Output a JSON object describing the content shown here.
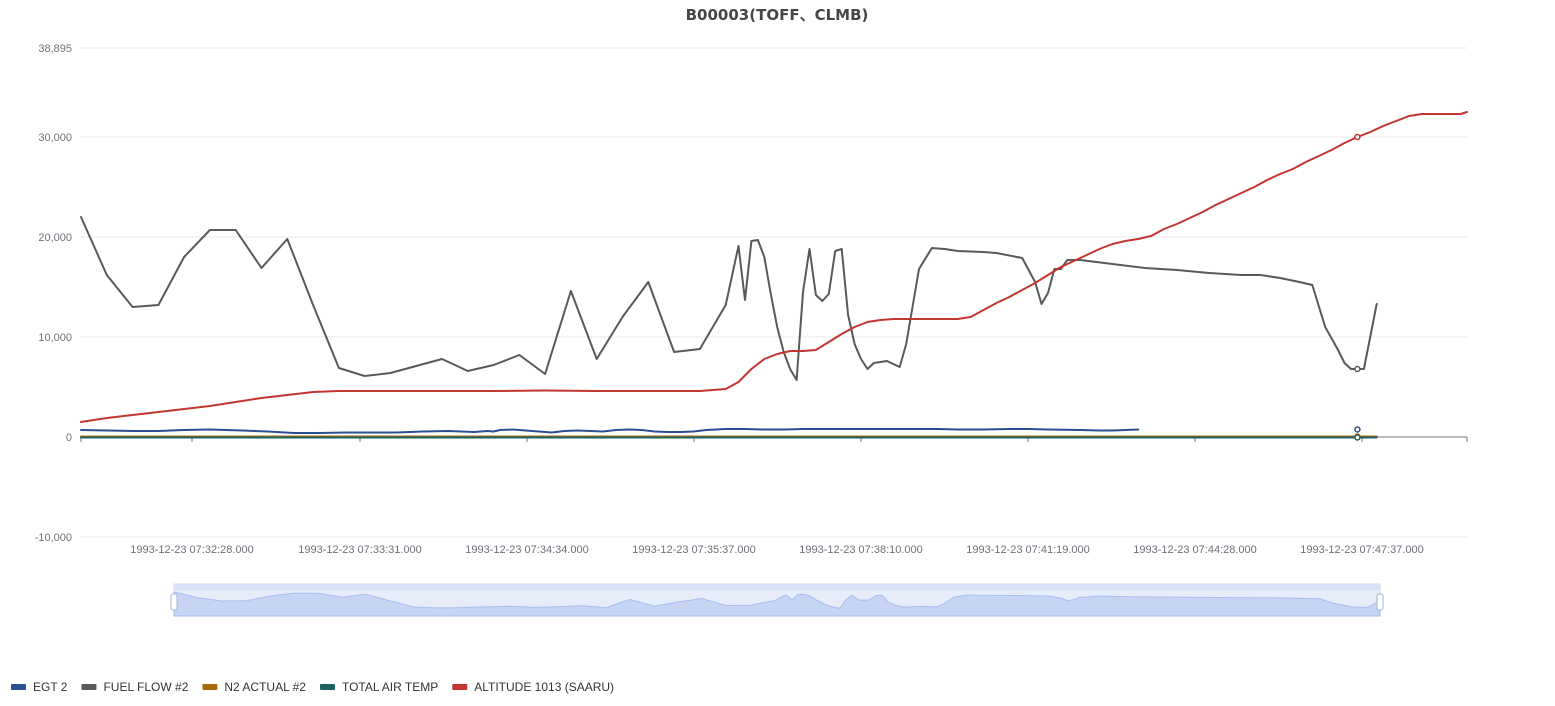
{
  "chart_data": {
    "type": "line",
    "title": "B00003(TOFF、CLMB)",
    "xlabel": "",
    "ylabel": "",
    "ylim": [
      -10000,
      38895
    ],
    "y_ticks": [
      {
        "value": 38895,
        "label": "38,895"
      },
      {
        "value": 30000,
        "label": "30,000"
      },
      {
        "value": 20000,
        "label": "20,000"
      },
      {
        "value": 10000,
        "label": "10,000"
      },
      {
        "value": 0,
        "label": "0"
      },
      {
        "value": -10000,
        "label": "-10,000"
      }
    ],
    "x_ticks": [
      "1993-12-23 07:32:28.000",
      "1993-12-23 07:33:31.000",
      "1993-12-23 07:34:34.000",
      "1993-12-23 07:35:37.000",
      "1993-12-23 07:38:10.000",
      "1993-12-23 07:41:19.000",
      "1993-12-23 07:44:28.000",
      "1993-12-23 07:47:37.000"
    ],
    "x_count": 105,
    "x_tick_positions": [
      8.5,
      21.0,
      33.5,
      46.0,
      58.5,
      71.0,
      83.5,
      96.0
    ],
    "grid": true,
    "legend_position": "bottom-left",
    "data_zoom": {
      "visible": true,
      "start_fraction": 0.067,
      "end_fraction": 0.937
    },
    "series": [
      {
        "name": "EGT 2",
        "color": "#2a4f92",
        "points": [
          [
            0,
            700
          ],
          [
            4,
            650
          ],
          [
            8,
            600
          ],
          [
            12,
            600
          ],
          [
            16,
            700
          ],
          [
            20,
            750
          ],
          [
            25,
            650
          ],
          [
            29,
            550
          ],
          [
            33,
            400
          ],
          [
            37,
            400
          ],
          [
            41,
            450
          ],
          [
            45,
            450
          ],
          [
            49,
            450
          ],
          [
            53,
            550
          ],
          [
            57,
            600
          ],
          [
            61,
            500
          ],
          [
            63,
            600
          ],
          [
            64,
            550
          ],
          [
            65,
            700
          ],
          [
            67,
            750
          ],
          [
            69,
            650
          ],
          [
            71,
            550
          ],
          [
            73,
            450
          ],
          [
            75,
            600
          ],
          [
            77,
            650
          ],
          [
            79,
            600
          ],
          [
            81,
            550
          ],
          [
            83,
            700
          ],
          [
            85,
            750
          ],
          [
            87,
            700
          ],
          [
            89,
            550
          ],
          [
            91,
            500
          ],
          [
            93,
            500
          ],
          [
            95,
            550
          ],
          [
            97,
            700
          ],
          [
            100,
            800
          ],
          [
            103,
            800
          ],
          [
            106,
            750
          ],
          [
            109,
            750
          ],
          [
            112,
            800
          ],
          [
            115,
            800
          ],
          [
            119,
            800
          ],
          [
            123,
            800
          ],
          [
            127,
            800
          ],
          [
            130,
            800
          ],
          [
            133,
            800
          ],
          [
            136,
            750
          ],
          [
            140,
            750
          ],
          [
            144,
            800
          ],
          [
            147,
            800
          ],
          [
            150,
            750
          ],
          [
            155,
            700
          ],
          [
            158,
            650
          ],
          [
            160,
            650
          ],
          [
            162,
            700
          ],
          [
            164,
            750
          ]
        ]
      },
      {
        "name": "FUEL FLOW #2",
        "color": "#595959",
        "points": [
          [
            0,
            22000
          ],
          [
            4,
            16200
          ],
          [
            8,
            13000
          ],
          [
            12,
            13200
          ],
          [
            16,
            18000
          ],
          [
            20,
            20700
          ],
          [
            24,
            20700
          ],
          [
            28,
            16900
          ],
          [
            32,
            19800
          ],
          [
            36,
            13200
          ],
          [
            40,
            6900
          ],
          [
            44,
            6100
          ],
          [
            48,
            6400
          ],
          [
            52,
            7100
          ],
          [
            56,
            7800
          ],
          [
            60,
            6600
          ],
          [
            64,
            7200
          ],
          [
            68,
            8200
          ],
          [
            72,
            6300
          ],
          [
            76,
            14600
          ],
          [
            80,
            7800
          ],
          [
            84,
            12000
          ],
          [
            88,
            15500
          ],
          [
            92,
            8500
          ],
          [
            96,
            8800
          ],
          [
            100,
            13200
          ],
          [
            102,
            19100
          ],
          [
            103,
            13700
          ],
          [
            104,
            19600
          ],
          [
            105,
            19700
          ],
          [
            106,
            18000
          ],
          [
            107,
            14300
          ],
          [
            108,
            11000
          ],
          [
            109,
            8500
          ],
          [
            110,
            6800
          ],
          [
            111,
            5700
          ],
          [
            112,
            14500
          ],
          [
            113,
            18800
          ],
          [
            114,
            14200
          ],
          [
            115,
            13600
          ],
          [
            116,
            14300
          ],
          [
            117,
            18600
          ],
          [
            118,
            18800
          ],
          [
            119,
            12200
          ],
          [
            120,
            9300
          ],
          [
            121,
            7800
          ],
          [
            122,
            6800
          ],
          [
            123,
            7400
          ],
          [
            125,
            7600
          ],
          [
            127,
            7000
          ],
          [
            128,
            9300
          ],
          [
            130,
            16800
          ],
          [
            132,
            18900
          ],
          [
            134,
            18800
          ],
          [
            136,
            18600
          ],
          [
            140,
            18500
          ],
          [
            142,
            18400
          ],
          [
            146,
            17900
          ],
          [
            148,
            15500
          ],
          [
            149,
            13300
          ],
          [
            150,
            14400
          ],
          [
            151,
            16800
          ],
          [
            152,
            16800
          ],
          [
            153,
            17700
          ],
          [
            155,
            17700
          ],
          [
            160,
            17300
          ],
          [
            165,
            16900
          ],
          [
            170,
            16700
          ],
          [
            175,
            16400
          ],
          [
            180,
            16200
          ],
          [
            183,
            16200
          ],
          [
            186,
            15900
          ],
          [
            189,
            15500
          ],
          [
            191,
            15200
          ],
          [
            193,
            11000
          ],
          [
            195,
            8700
          ],
          [
            196,
            7400
          ],
          [
            197,
            6800
          ],
          [
            199,
            6800
          ],
          [
            201,
            13300
          ]
        ]
      },
      {
        "name": "N2 ACTUAL #2",
        "color": "#a86b0c",
        "points": [
          [
            0,
            50
          ],
          [
            20,
            50
          ],
          [
            40,
            50
          ],
          [
            60,
            50
          ],
          [
            80,
            50
          ],
          [
            100,
            50
          ],
          [
            120,
            50
          ],
          [
            140,
            50
          ],
          [
            160,
            50
          ],
          [
            180,
            50
          ],
          [
            201,
            50
          ]
        ]
      },
      {
        "name": "TOTAL AIR TEMP",
        "color": "#1e6161",
        "points": [
          [
            0,
            -50
          ],
          [
            20,
            -50
          ],
          [
            40,
            -50
          ],
          [
            60,
            -50
          ],
          [
            80,
            -50
          ],
          [
            100,
            -50
          ],
          [
            120,
            -50
          ],
          [
            140,
            -50
          ],
          [
            160,
            -50
          ],
          [
            180,
            -50
          ],
          [
            201,
            -50
          ]
        ]
      },
      {
        "name": "ALTITUDE 1013 (SAARU)",
        "color": "#c23531",
        "points": [
          [
            0,
            1500
          ],
          [
            4,
            1900
          ],
          [
            8,
            2200
          ],
          [
            12,
            2500
          ],
          [
            16,
            2800
          ],
          [
            20,
            3100
          ],
          [
            24,
            3500
          ],
          [
            28,
            3900
          ],
          [
            32,
            4200
          ],
          [
            36,
            4500
          ],
          [
            40,
            4600
          ],
          [
            48,
            4600
          ],
          [
            56,
            4600
          ],
          [
            64,
            4600
          ],
          [
            72,
            4650
          ],
          [
            80,
            4600
          ],
          [
            88,
            4600
          ],
          [
            96,
            4600
          ],
          [
            98,
            4700
          ],
          [
            100,
            4800
          ],
          [
            102,
            5500
          ],
          [
            104,
            6800
          ],
          [
            106,
            7800
          ],
          [
            108,
            8300
          ],
          [
            110,
            8600
          ],
          [
            112,
            8600
          ],
          [
            114,
            8700
          ],
          [
            116,
            9500
          ],
          [
            118,
            10300
          ],
          [
            120,
            11000
          ],
          [
            122,
            11500
          ],
          [
            124,
            11700
          ],
          [
            126,
            11800
          ],
          [
            130,
            11800
          ],
          [
            134,
            11800
          ],
          [
            136,
            11800
          ],
          [
            138,
            12000
          ],
          [
            140,
            12700
          ],
          [
            142,
            13400
          ],
          [
            144,
            14000
          ],
          [
            146,
            14700
          ],
          [
            148,
            15400
          ],
          [
            150,
            16200
          ],
          [
            152,
            17000
          ],
          [
            154,
            17600
          ],
          [
            156,
            18200
          ],
          [
            158,
            18800
          ],
          [
            160,
            19300
          ],
          [
            162,
            19600
          ],
          [
            164,
            19800
          ],
          [
            166,
            20100
          ],
          [
            168,
            20800
          ],
          [
            170,
            21300
          ],
          [
            172,
            21900
          ],
          [
            174,
            22500
          ],
          [
            176,
            23200
          ],
          [
            178,
            23800
          ],
          [
            180,
            24400
          ],
          [
            182,
            25000
          ],
          [
            184,
            25700
          ],
          [
            186,
            26300
          ],
          [
            188,
            26800
          ],
          [
            190,
            27500
          ],
          [
            192,
            28100
          ],
          [
            194,
            28700
          ],
          [
            196,
            29400
          ],
          [
            198,
            30000
          ],
          [
            200,
            30500
          ],
          [
            202,
            31100
          ],
          [
            204,
            31600
          ],
          [
            206,
            32100
          ],
          [
            208,
            32300
          ],
          [
            210,
            32300
          ],
          [
            212,
            32300
          ],
          [
            214,
            32300
          ],
          [
            215,
            32500
          ]
        ]
      }
    ]
  }
}
